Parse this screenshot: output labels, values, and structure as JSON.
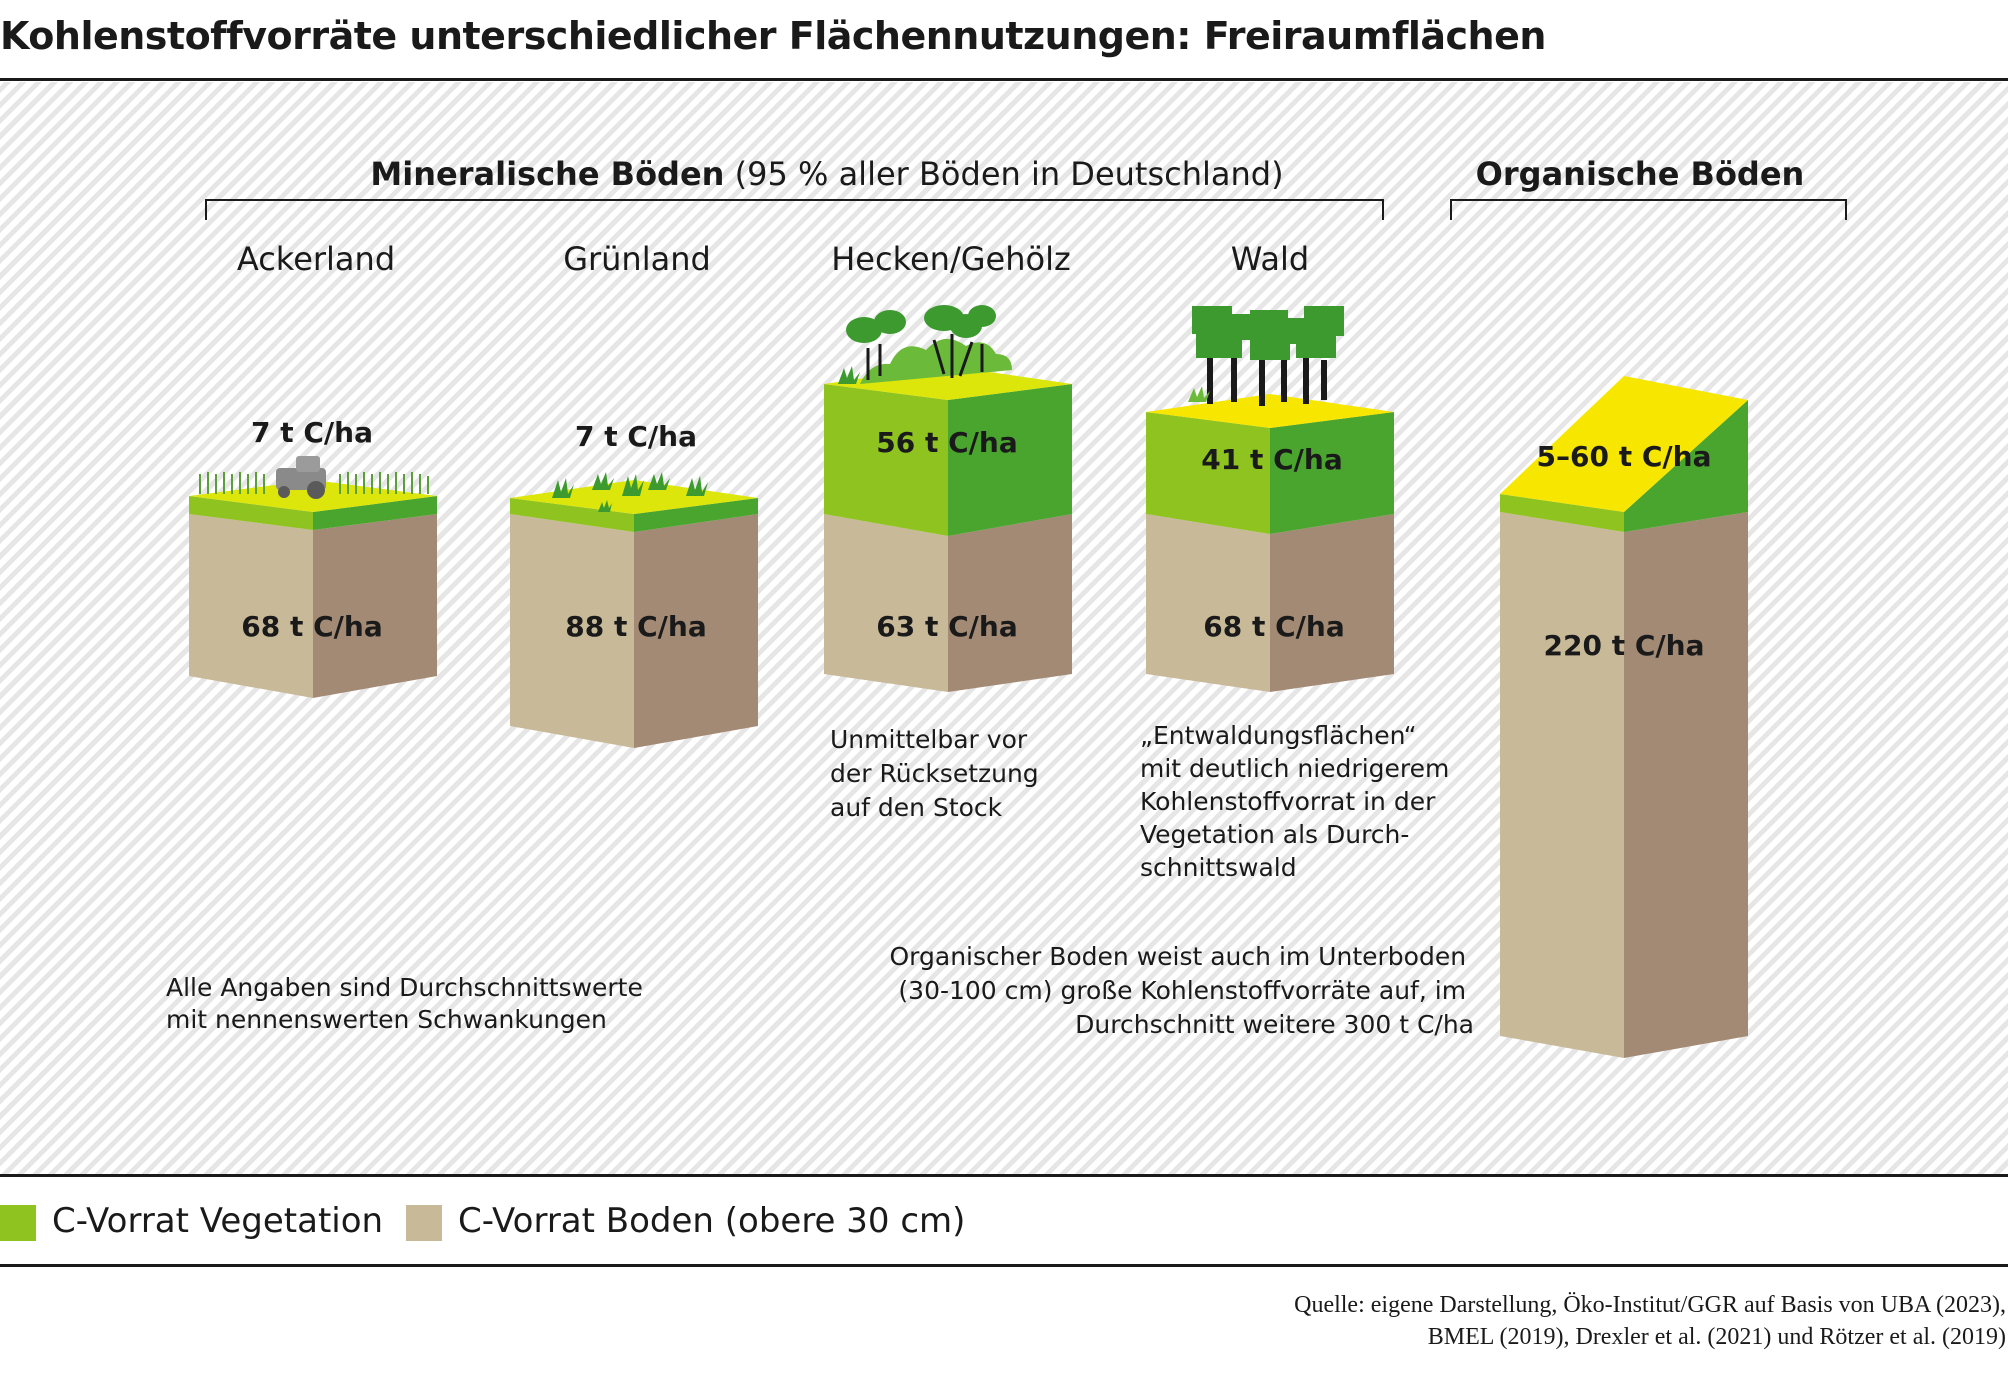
{
  "title": "Kohlenstoffvorräte unterschiedlicher Flächennutzungen: Freiraumflächen",
  "groups": {
    "mineral_bold": "Mineralische Böden",
    "mineral_rest": " (95 % aller Böden in Deutschland)",
    "organic": "Organische Böden"
  },
  "columns": [
    {
      "name": "Ackerland",
      "vegetation": "7 t C/ha",
      "soil": "68 t C/ha"
    },
    {
      "name": "Grünland",
      "vegetation": "7 t C/ha",
      "soil": "88 t C/ha"
    },
    {
      "name": "Hecken/Gehölz",
      "vegetation": "56 t C/ha",
      "soil": "63 t C/ha"
    },
    {
      "name": "Wald",
      "vegetation": "41 t C/ha",
      "soil": "68 t C/ha"
    },
    {
      "name": "",
      "vegetation": "5–60 t C/ha",
      "soil": "220 t C/ha"
    }
  ],
  "notes": {
    "hecken": [
      "Unmittelbar vor",
      "der Rücksetzung",
      "auf den Stock"
    ],
    "wald": [
      "„Entwaldungsflächen“",
      "mit deutlich niedrigerem",
      "Kohlenstoffvorrat in der",
      "Vegetation als Durch-",
      "schnittswald"
    ],
    "general": [
      "Alle Angaben sind Durchschnittswerte",
      "mit nennenswerten Schwankungen"
    ],
    "organic": [
      "Organischer Boden weist auch im Unterboden",
      "(30-100 cm) große Kohlenstoffvorräte auf, im",
      "Durchschnitt weitere 300 t C/ha"
    ]
  },
  "legend": [
    {
      "label": "C-Vorrat Vegetation",
      "color": "#8fc31f"
    },
    {
      "label": "C-Vorrat Boden (obere 30 cm)",
      "color": "#c8b998"
    }
  ],
  "source": [
    "Quelle: eigene Darstellung, Öko-Institut/GGR auf Basis von UBA (2023),",
    "BMEL (2019), Drexler et al. (2021) und Rötzer et al. (2019)"
  ],
  "colors": {
    "veg_front": "#8fc31f",
    "veg_side": "#4aa52e",
    "top_yellow": "#dde60a",
    "top_bright": "#f7e600",
    "soil_front": "#c8b998",
    "soil_side": "#a38a75",
    "tree_green": "#3c9a2f",
    "tree_light": "#6cba3a",
    "trunk": "#1a1a1a",
    "tractor": "#8a8a8a"
  }
}
